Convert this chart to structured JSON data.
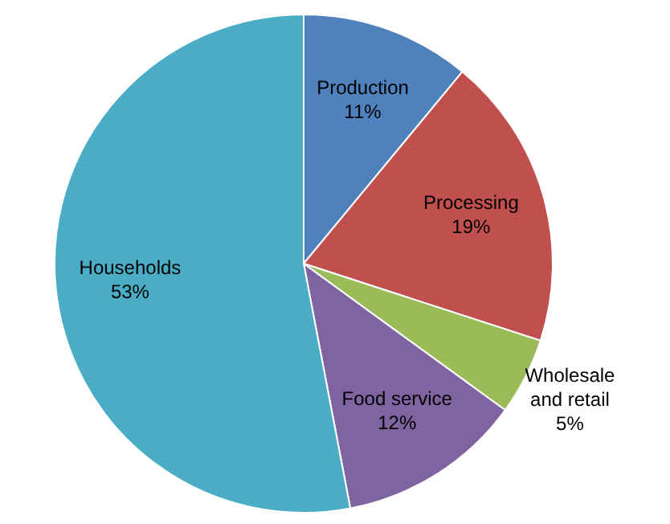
{
  "chart_data": {
    "type": "pie",
    "categories": [
      "Production",
      "Processing",
      "Wholesale and retail",
      "Food service",
      "Households"
    ],
    "values": [
      11,
      19,
      5,
      12,
      53
    ],
    "colors": [
      "#4f81bd",
      "#c0504d",
      "#9bbb59",
      "#8064a2",
      "#4bacc6"
    ],
    "value_labels": [
      "11%",
      "19%",
      "5%",
      "12%",
      "53%"
    ],
    "legend": false
  }
}
